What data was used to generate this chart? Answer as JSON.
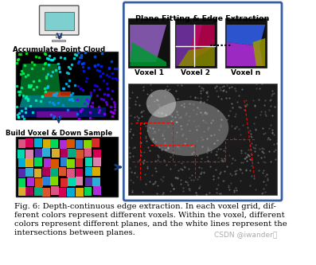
{
  "fig_width": 3.97,
  "fig_height": 3.33,
  "dpi": 100,
  "bg_color": "#ffffff",
  "caption_lines": [
    "Fig. 6: Depth-continuous edge extraction. In each voxel grid, dif-",
    "ferent colors represent different voxels. Within the voxel, different",
    "colors represent different planes, and the white lines represent the",
    "intersections between planes."
  ],
  "watermark": "CSDN @iwander。",
  "left_panel_title1": "Accumulate Point Cloud",
  "left_panel_title2": "Build Voxel & Down Sample",
  "right_top_title": "Plane Fitting & Edge Extraction",
  "voxel_labels": [
    "Voxel 1",
    "Voxel 2",
    "Voxel n"
  ],
  "dots": "......",
  "border_color": "#3a5fa0",
  "arrow_color": "#1a3a7a",
  "font_size_caption": 7.2,
  "font_size_labels": 6.5
}
